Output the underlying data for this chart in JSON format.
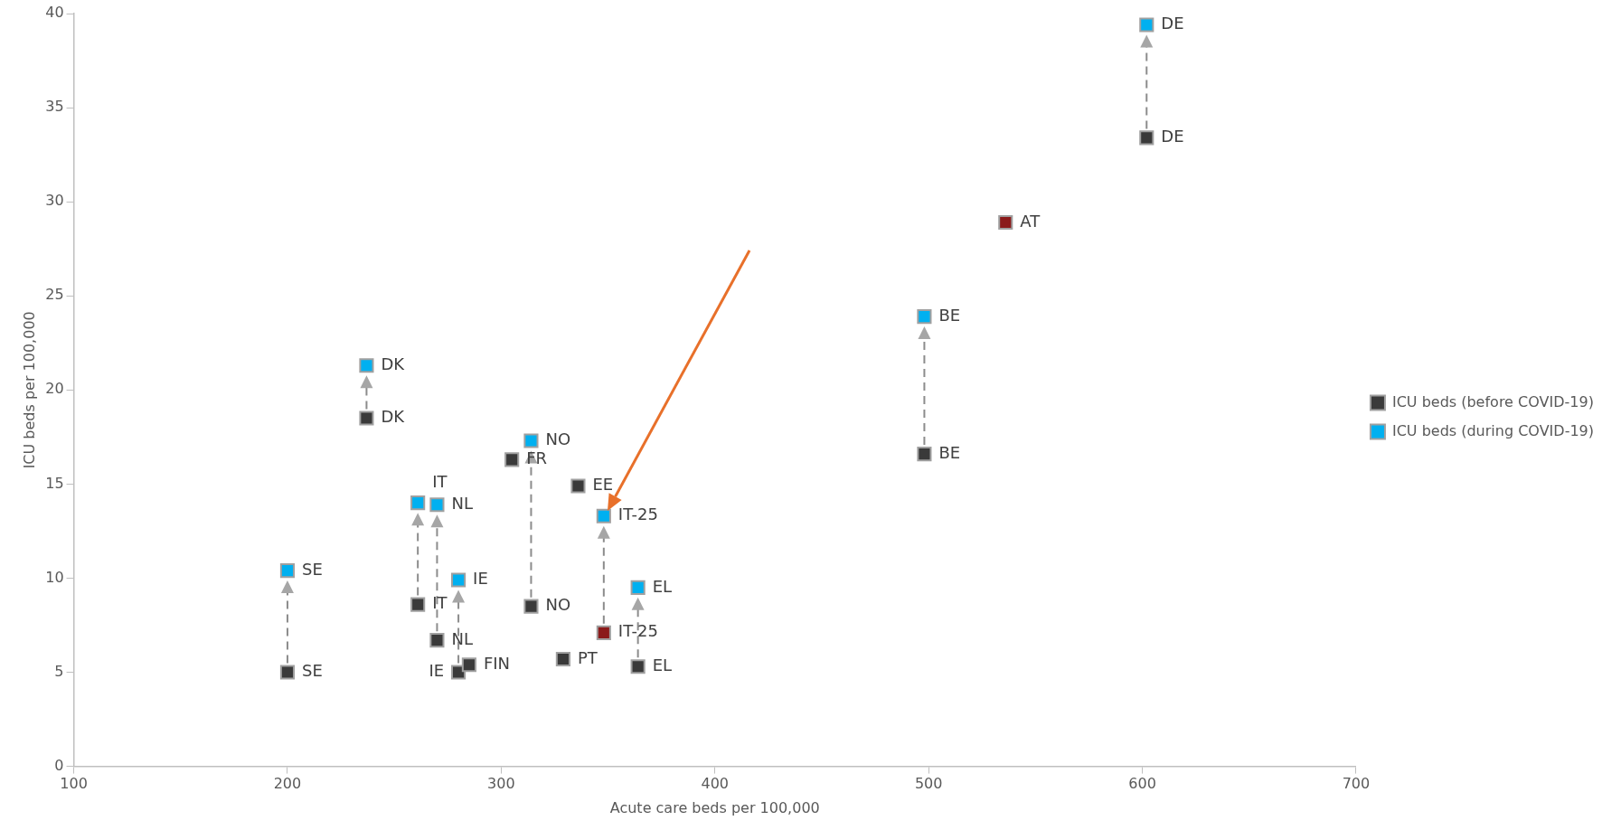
{
  "chart_data": {
    "type": "scatter",
    "xlabel": "Acute care beds per 100,000",
    "ylabel": "ICU beds per 100,000",
    "xlim": [
      100,
      700
    ],
    "xticks": [
      100,
      200,
      300,
      400,
      500,
      600,
      700
    ],
    "ylim": [
      0,
      40
    ],
    "yticks": [
      0,
      5,
      10,
      15,
      20,
      25,
      30,
      35,
      40
    ],
    "grid": false,
    "legend": "right",
    "marker": "square",
    "series": [
      {
        "name": "ICU beds (before COVID-19)",
        "color": "#3a3a3a",
        "x": [
          200,
          237,
          261,
          270,
          280,
          285,
          305,
          314,
          329,
          336,
          348,
          364,
          498,
          536,
          602
        ],
        "values": [
          5.0,
          18.5,
          8.6,
          6.7,
          5.0,
          5.4,
          16.3,
          8.5,
          5.7,
          14.9,
          7.1,
          5.3,
          16.6,
          28.9,
          33.4
        ],
        "colors": [
          "#3a3a3a",
          "#3a3a3a",
          "#3a3a3a",
          "#3a3a3a",
          "#3a3a3a",
          "#3a3a3a",
          "#3a3a3a",
          "#3a3a3a",
          "#3a3a3a",
          "#3a3a3a",
          "#8b1a1a",
          "#3a3a3a",
          "#3a3a3a",
          "#8b1a1a",
          "#3a3a3a"
        ]
      },
      {
        "name": "ICU beds (during COVID-19)",
        "color": "#00b0f0",
        "x": [
          200,
          237,
          261,
          270,
          280,
          314,
          348,
          364,
          498,
          602
        ],
        "values": [
          10.4,
          21.3,
          14.0,
          13.9,
          9.9,
          17.3,
          13.3,
          9.5,
          23.9,
          39.4
        ]
      }
    ],
    "annotations": [
      {
        "text": "SE",
        "x": 200,
        "y": 5.0
      },
      {
        "text": "DK",
        "x": 237,
        "y": 18.5
      },
      {
        "text": "IT",
        "x": 261,
        "y": 8.6
      },
      {
        "text": "NL",
        "x": 270,
        "y": 6.7
      },
      {
        "text": "IE",
        "x": 280,
        "y": 5.0
      },
      {
        "text": "FIN",
        "x": 285,
        "y": 5.4
      },
      {
        "text": "FR",
        "x": 305,
        "y": 16.3
      },
      {
        "text": "NO",
        "x": 314,
        "y": 8.5
      },
      {
        "text": "PT",
        "x": 329,
        "y": 5.7
      },
      {
        "text": "EE",
        "x": 336,
        "y": 14.9
      },
      {
        "text": "IT-25",
        "x": 348,
        "y": 7.1
      },
      {
        "text": "EL",
        "x": 364,
        "y": 5.3
      },
      {
        "text": "BE",
        "x": 498,
        "y": 16.6
      },
      {
        "text": "AT",
        "x": 536,
        "y": 28.9
      },
      {
        "text": "DE",
        "x": 602,
        "y": 33.4
      },
      {
        "text": "SE",
        "x": 200,
        "y": 10.4
      },
      {
        "text": "DK",
        "x": 237,
        "y": 21.3
      },
      {
        "text": "IT",
        "x": 261,
        "y": 14.0
      },
      {
        "text": "NL",
        "x": 270,
        "y": 13.9
      },
      {
        "text": "IE",
        "x": 280,
        "y": 9.9
      },
      {
        "text": "NO",
        "x": 314,
        "y": 17.3
      },
      {
        "text": "IT-25",
        "x": 348,
        "y": 13.3
      },
      {
        "text": "EL",
        "x": 364,
        "y": 9.5
      },
      {
        "text": "BE",
        "x": 498,
        "y": 23.9
      },
      {
        "text": "DE",
        "x": 602,
        "y": 39.4
      }
    ]
  }
}
